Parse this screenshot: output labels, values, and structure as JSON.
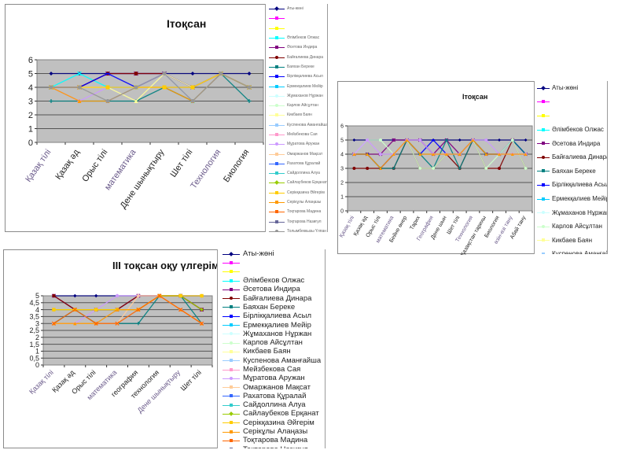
{
  "colors": {
    "plot_bg": "#c0c0c0",
    "gridline": "#555555",
    "series_palette": [
      "#000080",
      "#ff00ff",
      "#ffff00",
      "#00ffff",
      "#800080",
      "#800000",
      "#008080",
      "#0000ff",
      "#00ccff",
      "#ccffff",
      "#ccffcc",
      "#ffff99",
      "#99ccff",
      "#ff99cc",
      "#cc99ff",
      "#ffcc99",
      "#3366ff",
      "#33cccc",
      "#99cc00",
      "#ffcc00",
      "#ff9900",
      "#ff6600",
      "#666699",
      "#969696",
      "#003366",
      "#339966"
    ]
  },
  "legend_names": [
    "Аты-жөні",
    "",
    "",
    "Әлімбеков  Олжас",
    "Әсетова Индира",
    "Байғалиева Динара",
    "Баяхан Береке",
    "Бірлікқалиева Асыл",
    "Ермекқалиев Мейір",
    "Жұмаханов Нұржан",
    "Карлов Айсұлтан",
    "Кикбаев  Баян",
    "Куспенова Аманғайша",
    "Мейзбекова Сая",
    "Мұратова Аружан",
    "Омаржанов Мақсат",
    "Рахатова Құралай",
    "Сайдоллина Алуа",
    "Сайлаубеков Ерқанат",
    "Серікқазина Әйгерім",
    "Серікұлы Алаңазы",
    "Тоқтарова Мадина",
    "Тоқтарова Назигул",
    "Толымбекқызы Үлпан",
    "Турысбеков Серғазы",
    "Уатханов Есболат"
  ],
  "chart_data": [
    {
      "type": "line",
      "title": "Ітоқсан",
      "xlabel": "",
      "ylabel": "",
      "ylim": [
        0,
        6
      ],
      "yticks": [
        "0",
        "1",
        "2",
        "3",
        "4",
        "5",
        "6"
      ],
      "grid": true,
      "legend": "right",
      "categories": [
        "Қазақ тілі",
        "Қазақ әд",
        "Орыс тілі",
        "математика",
        "Дене шынықтыру",
        "Шет тілі",
        "Технология",
        "Биология"
      ],
      "series": [
        {
          "name": "Аты-жөні",
          "values": [
            5,
            5,
            5,
            5,
            5,
            5,
            5,
            5
          ]
        },
        {
          "name": "Әлімбеков  Олжас",
          "values": [
            4,
            5,
            4,
            4,
            5,
            3,
            5,
            4
          ]
        },
        {
          "name": "Әсетова Индира",
          "values": [
            4,
            4,
            5,
            5,
            5,
            4,
            5,
            4
          ]
        },
        {
          "name": "Байғалиева Динара",
          "values": [
            4,
            4,
            5,
            5,
            5,
            4,
            5,
            4
          ]
        },
        {
          "name": "Баяхан Береке",
          "values": [
            3,
            3,
            3,
            3,
            4,
            3,
            5,
            3
          ]
        },
        {
          "name": "Бірлікқалиева Асыл",
          "values": [
            4,
            4,
            5,
            4,
            5,
            4,
            5,
            4
          ]
        },
        {
          "name": "Мұратова Аружан",
          "values": [
            4,
            3,
            4,
            4,
            5,
            3,
            5,
            4
          ]
        },
        {
          "name": "Серікұлы Алаңазы",
          "values": [
            4,
            3,
            3,
            4,
            4,
            3,
            5,
            4
          ]
        },
        {
          "name": "Кикбаев  Баян",
          "values": [
            4,
            4,
            4,
            3,
            5,
            4,
            5,
            4
          ]
        },
        {
          "name": "Серікқазина Әйгерім",
          "values": [
            4,
            4,
            4,
            4,
            4,
            4,
            5,
            4
          ]
        },
        {
          "name": "Толымбекқызы Үлпан",
          "values": [
            4,
            4,
            3,
            4,
            5,
            3,
            5,
            4
          ]
        }
      ]
    },
    {
      "type": "line",
      "title": "Ітоқсан",
      "xlabel": "",
      "ylabel": "",
      "ylim": [
        0,
        6
      ],
      "yticks": [
        "0",
        "1",
        "2",
        "3",
        "4",
        "5",
        "6"
      ],
      "grid": true,
      "legend": "right",
      "categories": [
        "Қазақ тілі",
        "Қазақ әд",
        "Орыс тілі",
        "математика",
        "Бейне өнер",
        "Тарих",
        "География",
        "Дене шын",
        "Шет тілі",
        "Технология",
        "Ежелгі Қазақстан тарихы",
        "Биология",
        "өзін-өзі тану",
        "Абай тану"
      ],
      "series": [
        {
          "name": "Аты-жөні",
          "values": [
            5,
            5,
            5,
            5,
            5,
            5,
            5,
            5,
            5,
            5,
            5,
            5,
            5,
            5
          ]
        },
        {
          "name": "Әсетова Индира",
          "values": [
            4,
            4,
            4,
            5,
            5,
            5,
            4,
            5,
            4,
            5,
            4,
            4,
            5,
            4
          ]
        },
        {
          "name": "Байғалиева Динара",
          "values": [
            3,
            3,
            3,
            3,
            5,
            3,
            3,
            4,
            3,
            5,
            3,
            3,
            5,
            3
          ]
        },
        {
          "name": "Бірлікқалиева Асыл",
          "values": [
            4,
            4,
            3,
            4,
            5,
            4,
            5,
            4,
            4,
            5,
            4,
            4,
            5,
            4
          ]
        },
        {
          "name": "Баяхан Береке",
          "values": [
            4,
            4,
            3,
            3,
            5,
            4,
            3,
            5,
            3,
            5,
            4,
            4,
            5,
            4
          ]
        },
        {
          "name": "Карлов Айсұлтан",
          "values": [
            4,
            5,
            5,
            4,
            5,
            3,
            3,
            4,
            4,
            5,
            3,
            4,
            5,
            3
          ]
        },
        {
          "name": "Мұратова Аружан",
          "values": [
            4,
            5,
            4,
            4,
            5,
            5,
            4,
            4,
            4,
            5,
            5,
            4,
            4,
            4
          ]
        },
        {
          "name": "Серікұлы Алаңазы",
          "values": [
            4,
            4,
            3,
            4,
            5,
            4,
            4,
            4,
            4,
            5,
            4,
            4,
            4,
            4
          ]
        }
      ]
    },
    {
      "type": "line",
      "title": "ІІІ тоқсан оқу үлгерімі",
      "xlabel": "",
      "ylabel": "",
      "ylim": [
        0,
        5
      ],
      "yticks": [
        "0",
        "0,5",
        "1",
        "1,5",
        "2",
        "2,5",
        "3",
        "3,5",
        "4",
        "4,5",
        "5"
      ],
      "grid": true,
      "legend": "right",
      "categories": [
        "Қазақ тілі",
        "Қазақ әд",
        "Орыс тілі",
        "математика",
        "география",
        "технология",
        "Дене шынықтыру",
        "Шет тілі"
      ],
      "series": [
        {
          "name": "Аты-жөні",
          "values": [
            5,
            5,
            5,
            5,
            5,
            5,
            5,
            5
          ]
        },
        {
          "name": "Әсетова Индира",
          "values": [
            5,
            4,
            4,
            4,
            5,
            5,
            5,
            4
          ]
        },
        {
          "name": "Байғалиева Динара",
          "values": [
            5,
            4,
            4,
            4,
            5,
            5,
            5,
            4
          ]
        },
        {
          "name": "Баяхан Береке",
          "values": [
            3,
            4,
            3,
            3,
            3,
            5,
            5,
            3
          ]
        },
        {
          "name": "Мұратова Аружан",
          "values": [
            3,
            3,
            4,
            5,
            5,
            5,
            4,
            3
          ]
        },
        {
          "name": "Омаржанов Мақсат",
          "values": [
            3,
            3,
            3,
            3,
            5,
            5,
            4,
            3
          ]
        },
        {
          "name": "Сайлаубеков Ерқанат",
          "values": [
            4,
            4,
            4,
            4,
            4,
            5,
            5,
            4
          ]
        },
        {
          "name": "Серікқазина Әйгерім",
          "values": [
            4,
            4,
            4,
            4,
            4,
            5,
            5,
            5
          ]
        },
        {
          "name": "Серікұлы Алаңазы",
          "values": [
            3,
            3,
            3,
            4,
            4,
            5,
            4,
            3
          ]
        },
        {
          "name": "Тоқтарова Мадина",
          "values": [
            3,
            4,
            3,
            3,
            4,
            5,
            4,
            3
          ]
        }
      ]
    }
  ]
}
